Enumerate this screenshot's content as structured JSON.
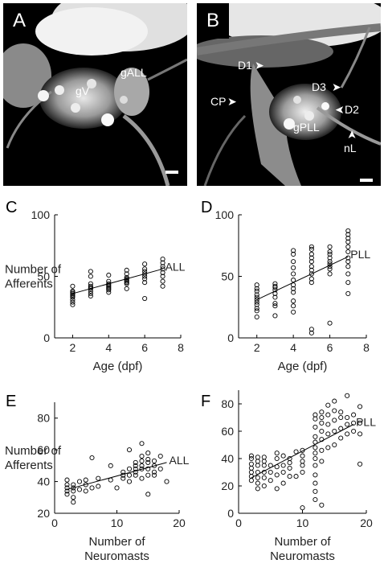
{
  "micrographs": [
    {
      "panel": "A",
      "labels": [
        "gV",
        "gALL"
      ]
    },
    {
      "panel": "B",
      "labels": [
        "D1",
        "CP",
        "D3",
        "D2",
        "gPLL",
        "nL"
      ]
    }
  ],
  "chart_data": [
    {
      "panel": "C",
      "type": "scatter",
      "series_label": "ALL",
      "xlabel": "Age (dpf)",
      "ylabel": [
        "Number of",
        "Afferents"
      ],
      "xlim": [
        1,
        8
      ],
      "ylim": [
        0,
        100
      ],
      "xticks": [
        2,
        4,
        6,
        8
      ],
      "yticks": [
        0,
        50,
        100
      ],
      "points": [
        [
          2,
          27
        ],
        [
          2,
          29
        ],
        [
          2,
          31
        ],
        [
          2,
          33
        ],
        [
          2,
          34
        ],
        [
          2,
          35
        ],
        [
          2,
          36
        ],
        [
          2,
          37
        ],
        [
          2,
          38
        ],
        [
          2,
          42
        ],
        [
          3,
          34
        ],
        [
          3,
          36
        ],
        [
          3,
          38
        ],
        [
          3,
          40
        ],
        [
          3,
          41
        ],
        [
          3,
          42
        ],
        [
          3,
          44
        ],
        [
          3,
          50
        ],
        [
          3,
          54
        ],
        [
          4,
          37
        ],
        [
          4,
          39
        ],
        [
          4,
          40
        ],
        [
          4,
          41
        ],
        [
          4,
          42
        ],
        [
          4,
          43
        ],
        [
          4,
          44
        ],
        [
          4,
          46
        ],
        [
          4,
          51
        ],
        [
          5,
          40
        ],
        [
          5,
          44
        ],
        [
          5,
          45
        ],
        [
          5,
          46
        ],
        [
          5,
          47
        ],
        [
          5,
          48
        ],
        [
          5,
          49
        ],
        [
          5,
          52
        ],
        [
          5,
          55
        ],
        [
          6,
          32
        ],
        [
          6,
          45
        ],
        [
          6,
          48
        ],
        [
          6,
          50
        ],
        [
          6,
          52
        ],
        [
          6,
          54
        ],
        [
          6,
          56
        ],
        [
          6,
          60
        ],
        [
          7,
          42
        ],
        [
          7,
          46
        ],
        [
          7,
          50
        ],
        [
          7,
          53
        ],
        [
          7,
          56
        ],
        [
          7,
          58
        ],
        [
          7,
          61
        ],
        [
          7,
          64
        ]
      ],
      "fit": [
        [
          2,
          36
        ],
        [
          7,
          56
        ]
      ]
    },
    {
      "panel": "D",
      "type": "scatter",
      "series_label": "PLL",
      "xlabel": "Age (dpf)",
      "ylabel": [],
      "xlim": [
        1,
        8
      ],
      "ylim": [
        0,
        100
      ],
      "xticks": [
        2,
        4,
        6,
        8
      ],
      "yticks": [
        0,
        50,
        100
      ],
      "points": [
        [
          2,
          17
        ],
        [
          2,
          22
        ],
        [
          2,
          24
        ],
        [
          2,
          27
        ],
        [
          2,
          29
        ],
        [
          2,
          31
        ],
        [
          2,
          33
        ],
        [
          2,
          35
        ],
        [
          2,
          38
        ],
        [
          2,
          40
        ],
        [
          2,
          43
        ],
        [
          3,
          18
        ],
        [
          3,
          26
        ],
        [
          3,
          28
        ],
        [
          3,
          33
        ],
        [
          3,
          36
        ],
        [
          3,
          39
        ],
        [
          3,
          41
        ],
        [
          3,
          42
        ],
        [
          3,
          44
        ],
        [
          4,
          21
        ],
        [
          4,
          26
        ],
        [
          4,
          30
        ],
        [
          4,
          37
        ],
        [
          4,
          40
        ],
        [
          4,
          43
        ],
        [
          4,
          47
        ],
        [
          4,
          52
        ],
        [
          4,
          57
        ],
        [
          4,
          62
        ],
        [
          4,
          68
        ],
        [
          4,
          71
        ],
        [
          5,
          4
        ],
        [
          5,
          7
        ],
        [
          5,
          45
        ],
        [
          5,
          48
        ],
        [
          5,
          52
        ],
        [
          5,
          55
        ],
        [
          5,
          58
        ],
        [
          5,
          62
        ],
        [
          5,
          65
        ],
        [
          5,
          68
        ],
        [
          5,
          72
        ],
        [
          5,
          74
        ],
        [
          6,
          12
        ],
        [
          6,
          52
        ],
        [
          6,
          56
        ],
        [
          6,
          58
        ],
        [
          6,
          60
        ],
        [
          6,
          62
        ],
        [
          6,
          65
        ],
        [
          6,
          68
        ],
        [
          6,
          70
        ],
        [
          6,
          74
        ],
        [
          7,
          36
        ],
        [
          7,
          45
        ],
        [
          7,
          52
        ],
        [
          7,
          58
        ],
        [
          7,
          62
        ],
        [
          7,
          65
        ],
        [
          7,
          70
        ],
        [
          7,
          74
        ],
        [
          7,
          78
        ],
        [
          7,
          81
        ],
        [
          7,
          84
        ],
        [
          7,
          87
        ]
      ],
      "fit": [
        [
          2,
          31
        ],
        [
          7,
          66
        ]
      ]
    },
    {
      "panel": "E",
      "type": "scatter",
      "series_label": "ALL",
      "xlabel": [
        "Number of",
        "Neuromasts"
      ],
      "ylabel": [
        "Number of",
        "Afferents"
      ],
      "xlim": [
        0,
        20
      ],
      "ylim": [
        20,
        90
      ],
      "xticks": [
        0,
        10,
        20
      ],
      "yticks": [
        20,
        40,
        60,
        80
      ],
      "points": [
        [
          2,
          32
        ],
        [
          2,
          34
        ],
        [
          2,
          36
        ],
        [
          2,
          38
        ],
        [
          2,
          41
        ],
        [
          3,
          27
        ],
        [
          3,
          30
        ],
        [
          3,
          34
        ],
        [
          3,
          36
        ],
        [
          3,
          38
        ],
        [
          4,
          35
        ],
        [
          4,
          40
        ],
        [
          5,
          34
        ],
        [
          5,
          38
        ],
        [
          5,
          41
        ],
        [
          6,
          36
        ],
        [
          6,
          55
        ],
        [
          7,
          37
        ],
        [
          7,
          42
        ],
        [
          9,
          41
        ],
        [
          9,
          50
        ],
        [
          10,
          36
        ],
        [
          11,
          42
        ],
        [
          11,
          44
        ],
        [
          11,
          46
        ],
        [
          12,
          40
        ],
        [
          12,
          44
        ],
        [
          12,
          48
        ],
        [
          12,
          60
        ],
        [
          13,
          44
        ],
        [
          13,
          46
        ],
        [
          13,
          48
        ],
        [
          13,
          50
        ],
        [
          13,
          52
        ],
        [
          14,
          42
        ],
        [
          14,
          48
        ],
        [
          14,
          50
        ],
        [
          14,
          53
        ],
        [
          14,
          56
        ],
        [
          14,
          64
        ],
        [
          15,
          32
        ],
        [
          15,
          44
        ],
        [
          15,
          48
        ],
        [
          15,
          52
        ],
        [
          15,
          54
        ],
        [
          15,
          58
        ],
        [
          16,
          44
        ],
        [
          16,
          46
        ],
        [
          16,
          50
        ],
        [
          16,
          53
        ],
        [
          17,
          48
        ],
        [
          17,
          56
        ],
        [
          18,
          40
        ]
      ],
      "fit": [
        [
          2,
          35
        ],
        [
          18,
          52
        ]
      ]
    },
    {
      "panel": "F",
      "type": "scatter",
      "series_label": "PLL",
      "xlabel": [
        "Number of",
        "Neuromasts"
      ],
      "ylabel": [],
      "xlim": [
        0,
        20
      ],
      "ylim": [
        0,
        90
      ],
      "xticks": [
        0,
        10,
        20
      ],
      "yticks": [
        0,
        20,
        40,
        60,
        80
      ],
      "points": [
        [
          2,
          24
        ],
        [
          2,
          27
        ],
        [
          2,
          30
        ],
        [
          2,
          33
        ],
        [
          2,
          36
        ],
        [
          2,
          40
        ],
        [
          2,
          42
        ],
        [
          3,
          18
        ],
        [
          3,
          22
        ],
        [
          3,
          26
        ],
        [
          3,
          30
        ],
        [
          3,
          35
        ],
        [
          3,
          38
        ],
        [
          3,
          41
        ],
        [
          4,
          20
        ],
        [
          4,
          26
        ],
        [
          4,
          30
        ],
        [
          4,
          35
        ],
        [
          4,
          38
        ],
        [
          4,
          41
        ],
        [
          5,
          24
        ],
        [
          5,
          30
        ],
        [
          5,
          35
        ],
        [
          6,
          18
        ],
        [
          6,
          28
        ],
        [
          6,
          34
        ],
        [
          6,
          40
        ],
        [
          6,
          44
        ],
        [
          7,
          22
        ],
        [
          7,
          30
        ],
        [
          7,
          35
        ],
        [
          7,
          42
        ],
        [
          8,
          27
        ],
        [
          8,
          33
        ],
        [
          8,
          37
        ],
        [
          8,
          40
        ],
        [
          9,
          27
        ],
        [
          9,
          45
        ],
        [
          10,
          4
        ],
        [
          10,
          30
        ],
        [
          10,
          35
        ],
        [
          10,
          38
        ],
        [
          10,
          42
        ],
        [
          10,
          46
        ],
        [
          12,
          10
        ],
        [
          12,
          16
        ],
        [
          12,
          22
        ],
        [
          12,
          28
        ],
        [
          12,
          35
        ],
        [
          12,
          40
        ],
        [
          12,
          44
        ],
        [
          12,
          48
        ],
        [
          12,
          52
        ],
        [
          12,
          56
        ],
        [
          12,
          63
        ],
        [
          12,
          69
        ],
        [
          12,
          72
        ],
        [
          13,
          6
        ],
        [
          13,
          38
        ],
        [
          13,
          46
        ],
        [
          13,
          54
        ],
        [
          13,
          60
        ],
        [
          13,
          66
        ],
        [
          13,
          70
        ],
        [
          13,
          74
        ],
        [
          14,
          48
        ],
        [
          14,
          58
        ],
        [
          14,
          65
        ],
        [
          14,
          72
        ],
        [
          14,
          79
        ],
        [
          15,
          50
        ],
        [
          15,
          60
        ],
        [
          15,
          68
        ],
        [
          15,
          75
        ],
        [
          15,
          82
        ],
        [
          16,
          55
        ],
        [
          16,
          62
        ],
        [
          16,
          70
        ],
        [
          16,
          74
        ],
        [
          17,
          58
        ],
        [
          17,
          65
        ],
        [
          17,
          70
        ],
        [
          17,
          86
        ],
        [
          18,
          60
        ],
        [
          18,
          66
        ],
        [
          18,
          72
        ],
        [
          19,
          36
        ],
        [
          19,
          58
        ],
        [
          19,
          66
        ],
        [
          19,
          78
        ]
      ],
      "fit": [
        [
          2,
          26
        ],
        [
          18,
          65
        ]
      ]
    }
  ]
}
